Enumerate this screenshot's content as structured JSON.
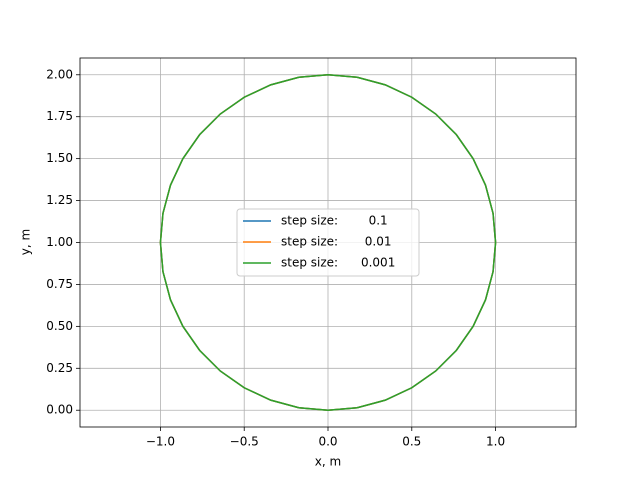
{
  "chart_data": {
    "type": "line",
    "xlabel": "x, m",
    "ylabel": "y, m",
    "xlim": [
      -1.48,
      1.48
    ],
    "ylim": [
      -0.1,
      2.1
    ],
    "xticks": [
      {
        "value": -1,
        "label": "−1.0"
      },
      {
        "value": -0.5,
        "label": "−0.5"
      },
      {
        "value": 0,
        "label": "0.0"
      },
      {
        "value": 0.5,
        "label": "0.5"
      },
      {
        "value": 1,
        "label": "1.0"
      }
    ],
    "yticks": [
      {
        "value": 0,
        "label": "0.00"
      },
      {
        "value": 0.25,
        "label": "0.25"
      },
      {
        "value": 0.5,
        "label": "0.50"
      },
      {
        "value": 0.75,
        "label": "0.75"
      },
      {
        "value": 1,
        "label": "1.00"
      },
      {
        "value": 1.25,
        "label": "1.25"
      },
      {
        "value": 1.5,
        "label": "1.50"
      },
      {
        "value": 1.75,
        "label": "1.75"
      },
      {
        "value": 2,
        "label": "2.00"
      }
    ],
    "grid": true,
    "legend": "center",
    "series": [
      {
        "name": "step size:        0.1",
        "color": "#1f77b4",
        "x": [
          1,
          0.985,
          0.94,
          0.866,
          0.766,
          0.643,
          0.5,
          0.342,
          0.174,
          0,
          -0.174,
          -0.342,
          -0.5,
          -0.643,
          -0.766,
          -0.866,
          -0.94,
          -0.985,
          -1,
          -0.985,
          -0.94,
          -0.866,
          -0.766,
          -0.643,
          -0.5,
          -0.342,
          -0.174,
          0,
          0.174,
          0.342,
          0.5,
          0.643,
          0.766,
          0.866,
          0.94,
          0.985,
          1
        ],
        "values": [
          1,
          1.174,
          1.342,
          1.5,
          1.643,
          1.766,
          1.866,
          1.94,
          1.985,
          2,
          1.985,
          1.94,
          1.866,
          1.766,
          1.643,
          1.5,
          1.342,
          1.174,
          1,
          0.826,
          0.658,
          0.5,
          0.357,
          0.234,
          0.134,
          0.06,
          0.015,
          0,
          0.015,
          0.06,
          0.134,
          0.234,
          0.357,
          0.5,
          0.658,
          0.826,
          1
        ]
      },
      {
        "name": "step size:       0.01",
        "color": "#ff7f0e",
        "x": [
          1,
          0.985,
          0.94,
          0.866,
          0.766,
          0.643,
          0.5,
          0.342,
          0.174,
          0,
          -0.174,
          -0.342,
          -0.5,
          -0.643,
          -0.766,
          -0.866,
          -0.94,
          -0.985,
          -1,
          -0.985,
          -0.94,
          -0.866,
          -0.766,
          -0.643,
          -0.5,
          -0.342,
          -0.174,
          0,
          0.174,
          0.342,
          0.5,
          0.643,
          0.766,
          0.866,
          0.94,
          0.985,
          1
        ],
        "values": [
          1,
          1.174,
          1.342,
          1.5,
          1.643,
          1.766,
          1.866,
          1.94,
          1.985,
          2,
          1.985,
          1.94,
          1.866,
          1.766,
          1.643,
          1.5,
          1.342,
          1.174,
          1,
          0.826,
          0.658,
          0.5,
          0.357,
          0.234,
          0.134,
          0.06,
          0.015,
          0,
          0.015,
          0.06,
          0.134,
          0.234,
          0.357,
          0.5,
          0.658,
          0.826,
          1
        ]
      },
      {
        "name": "step size:      0.001",
        "color": "#2ca02c",
        "x": [
          1,
          0.985,
          0.94,
          0.866,
          0.766,
          0.643,
          0.5,
          0.342,
          0.174,
          0,
          -0.174,
          -0.342,
          -0.5,
          -0.643,
          -0.766,
          -0.866,
          -0.94,
          -0.985,
          -1,
          -0.985,
          -0.94,
          -0.866,
          -0.766,
          -0.643,
          -0.5,
          -0.342,
          -0.174,
          0,
          0.174,
          0.342,
          0.5,
          0.643,
          0.766,
          0.866,
          0.94,
          0.985,
          1
        ],
        "values": [
          1,
          1.174,
          1.342,
          1.5,
          1.643,
          1.766,
          1.866,
          1.94,
          1.985,
          2,
          1.985,
          1.94,
          1.866,
          1.766,
          1.643,
          1.5,
          1.342,
          1.174,
          1,
          0.826,
          0.658,
          0.5,
          0.357,
          0.234,
          0.134,
          0.06,
          0.015,
          0,
          0.015,
          0.06,
          0.134,
          0.234,
          0.357,
          0.5,
          0.658,
          0.826,
          1
        ]
      }
    ]
  }
}
